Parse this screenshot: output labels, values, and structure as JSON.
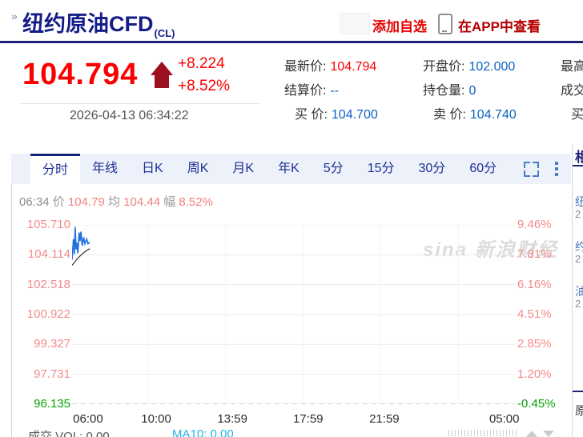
{
  "header": {
    "breadcrumb_icon": "»",
    "title": "纽约原油CFD",
    "symbol": "(CL)",
    "add_watchlist": "添加自选",
    "view_in_app": "在APP中查看"
  },
  "quote": {
    "price": "104.794",
    "change": "+8.224",
    "change_pct": "+8.52%",
    "timestamp": "2026-04-13 06:34:22",
    "fields": [
      {
        "label": "最新价:",
        "value": "104.794",
        "color": "red"
      },
      {
        "label": "开盘价:",
        "value": "102.000",
        "color": "blue"
      },
      {
        "label": "最高",
        "value": "",
        "color": "blue"
      },
      {
        "label": "结算价:",
        "value": "--",
        "color": "blue"
      },
      {
        "label": "持仓量:",
        "value": "0",
        "color": "blue"
      },
      {
        "label": "成交",
        "value": "",
        "color": "blue"
      },
      {
        "label": "买 价:",
        "value": "104.700",
        "color": "blue"
      },
      {
        "label": "卖 价:",
        "value": "104.740",
        "color": "blue"
      },
      {
        "label": "买",
        "value": "",
        "color": "blue"
      }
    ]
  },
  "tabs": {
    "items": [
      "分时",
      "年线",
      "日K",
      "周K",
      "月K",
      "年K",
      "5分",
      "15分",
      "30分",
      "60分"
    ],
    "active": "分时"
  },
  "chart_info": {
    "time": "06:34",
    "price_label": "价",
    "price": "104.79",
    "avg_label": "均",
    "avg": "104.44",
    "amp_label": "幅",
    "amp": "8.52%"
  },
  "chart_data": {
    "type": "line",
    "title": "纽约原油CFD 分时图",
    "ylim": [
      96.135,
      105.71
    ],
    "y_rows": [
      {
        "left": "105.710",
        "right": "9.46%",
        "state": "up"
      },
      {
        "left": "104.114",
        "right": "7.81%",
        "state": "up"
      },
      {
        "left": "102.518",
        "right": "6.16%",
        "state": "up"
      },
      {
        "left": "100.922",
        "right": "4.51%",
        "state": "up"
      },
      {
        "left": "99.327",
        "right": "2.85%",
        "state": "up"
      },
      {
        "left": "97.731",
        "right": "1.20%",
        "state": "up"
      },
      {
        "left": "96.135",
        "right": "-0.45%",
        "state": "down",
        "dashed": true
      }
    ],
    "x_ticks": [
      {
        "label": "06:00",
        "xf": 0.036
      },
      {
        "label": "10:00",
        "xf": 0.19
      },
      {
        "label": "13:59",
        "xf": 0.362
      },
      {
        "label": "17:59",
        "xf": 0.533
      },
      {
        "label": "21:59",
        "xf": 0.705
      },
      {
        "label": "05:00",
        "xf": 0.976
      }
    ],
    "v_grid_xf": [
      0.172,
      0.347,
      0.521,
      0.696,
      0.872
    ],
    "series": [
      {
        "name": "price",
        "color": "#1e6fdf",
        "points": [
          [
            0.0,
            103.85
          ],
          [
            0.003,
            104.95
          ],
          [
            0.005,
            104.15
          ],
          [
            0.007,
            105.6
          ],
          [
            0.009,
            104.4
          ],
          [
            0.011,
            104.75
          ],
          [
            0.013,
            104.2
          ],
          [
            0.016,
            105.3
          ],
          [
            0.018,
            104.85
          ],
          [
            0.02,
            105.35
          ],
          [
            0.023,
            104.6
          ],
          [
            0.026,
            105.05
          ],
          [
            0.029,
            104.7
          ],
          [
            0.033,
            104.95
          ],
          [
            0.036,
            104.7
          ],
          [
            0.04,
            104.79
          ]
        ]
      },
      {
        "name": "average",
        "color": "#333333",
        "points": [
          [
            0.0,
            103.55
          ],
          [
            0.01,
            103.85
          ],
          [
            0.02,
            104.1
          ],
          [
            0.03,
            104.3
          ],
          [
            0.04,
            104.44
          ]
        ]
      }
    ],
    "colors": {
      "up_label": "#f28b8b",
      "down_label": "#0aa30a",
      "grid": "#ebebeb",
      "grid_dashed": "#a8a8a8"
    }
  },
  "volume": {
    "label": "成交 VOL: 0.00",
    "ma10": "MA10: 0.00"
  },
  "watermark": {
    "text": "sina 新浪财经"
  },
  "sidebar": {
    "header_fragment": "相",
    "items": [
      {
        "title_fragment": "纽",
        "date_fragment": "2"
      },
      {
        "title_fragment": "约",
        "date_fragment": "2"
      },
      {
        "title_fragment": "油",
        "date_fragment": "2"
      }
    ],
    "footer_fragment": "原"
  }
}
